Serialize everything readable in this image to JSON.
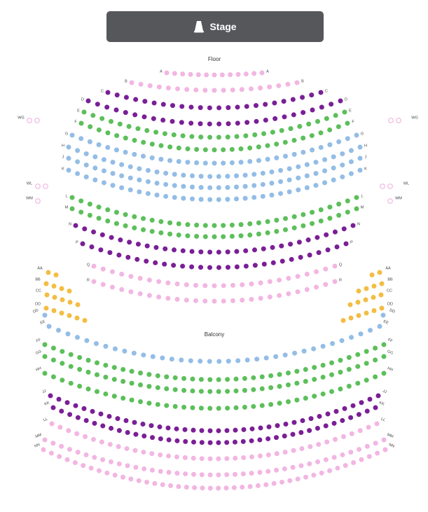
{
  "stage": {
    "label": "Stage",
    "icon": "stage-lamp-icon"
  },
  "sections": {
    "floor": {
      "label": "Floor"
    },
    "balcony": {
      "label": "Balcony"
    }
  },
  "legend_colors": {
    "pink": "#f2b6e2",
    "purple": "#7a1f96",
    "green": "#5cbf5a",
    "blue": "#93bde6",
    "orange": "#f3bd43"
  },
  "floor_rows": [
    {
      "label": "A",
      "color": "pink",
      "seats": 13
    },
    {
      "label": "B",
      "color": "pink",
      "seats": 19
    },
    {
      "label": "C",
      "color": "purple",
      "seats": 24
    },
    {
      "label": "D",
      "color": "purple",
      "seats": 28
    },
    {
      "label": "E",
      "color": "green",
      "seats": 30
    },
    {
      "label": "F",
      "color": "green",
      "seats": 31
    },
    {
      "label": "G",
      "color": "blue",
      "seats": 33
    },
    {
      "label": "H",
      "color": "blue",
      "seats": 34
    },
    {
      "label": "J",
      "color": "blue",
      "seats": 34
    },
    {
      "label": "K",
      "color": "blue",
      "seats": 34
    },
    {
      "label": "L",
      "color": "green",
      "seats": 33
    },
    {
      "label": "M",
      "color": "green",
      "seats": 33
    },
    {
      "label": "N",
      "color": "purple",
      "seats": 32
    },
    {
      "label": "P",
      "color": "purple",
      "seats": 30
    },
    {
      "label": "Q",
      "color": "pink",
      "seats": 27
    },
    {
      "label": "R",
      "color": "pink",
      "seats": 27
    }
  ],
  "side_rows": [
    {
      "label": "WG",
      "seats": 2
    },
    {
      "label": "WL",
      "seats": 2
    },
    {
      "label": "WM",
      "seats": 1
    }
  ],
  "box_rows": [
    {
      "label": "AA",
      "seats": 2
    },
    {
      "label": "BB",
      "seats": 4
    },
    {
      "label": "CC",
      "seats": 5
    },
    {
      "label": "DD",
      "seats": 6
    }
  ],
  "balcony_rows": [
    {
      "label": "DD",
      "color": "blue",
      "seats": 0
    },
    {
      "label": "EE",
      "color": "blue",
      "seats": 36
    },
    {
      "label": "FF",
      "color": "green",
      "seats": 40
    },
    {
      "label": "GG",
      "color": "green",
      "seats": 40
    },
    {
      "label": "HH",
      "color": "green",
      "seats": 40
    },
    {
      "label": "JJ",
      "color": "purple",
      "seats": 40
    },
    {
      "label": "KK",
      "color": "purple",
      "seats": 40
    },
    {
      "label": "LL",
      "color": "pink",
      "seats": 40
    },
    {
      "label": "MM",
      "color": "pink",
      "seats": 42
    },
    {
      "label": "NN",
      "color": "pink",
      "seats": 44
    }
  ]
}
